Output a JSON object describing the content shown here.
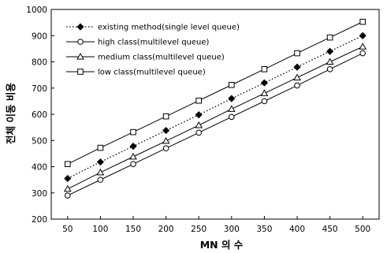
{
  "chart_data": {
    "type": "line",
    "title": "",
    "xlabel": "MN 의 수",
    "ylabel": "전체 이동 비용",
    "x": [
      50,
      100,
      150,
      200,
      250,
      300,
      350,
      400,
      450,
      500
    ],
    "xlim": [
      25,
      525
    ],
    "ylim": [
      200,
      1000
    ],
    "yticks": [
      200,
      300,
      400,
      500,
      600,
      700,
      800,
      900,
      1000
    ],
    "grid": false,
    "legend_position": "top-left",
    "series": [
      {
        "name": "existing method(single level queue)",
        "marker": "filled-diamond",
        "line_style": "dotted",
        "values": [
          355,
          418,
          478,
          538,
          598,
          660,
          720,
          780,
          840,
          900
        ]
      },
      {
        "name": "high class(multilevel queue)",
        "marker": "open-circle",
        "line_style": "solid",
        "values": [
          290,
          350,
          410,
          470,
          530,
          590,
          650,
          710,
          772,
          833
        ]
      },
      {
        "name": "medium class(multilevel queue)",
        "marker": "open-triangle",
        "line_style": "solid",
        "values": [
          315,
          378,
          438,
          498,
          558,
          620,
          680,
          740,
          800,
          858
        ]
      },
      {
        "name": "low class(multilevel queue)",
        "marker": "open-square",
        "line_style": "solid",
        "values": [
          410,
          472,
          532,
          592,
          652,
          712,
          772,
          833,
          893,
          953
        ]
      }
    ]
  }
}
